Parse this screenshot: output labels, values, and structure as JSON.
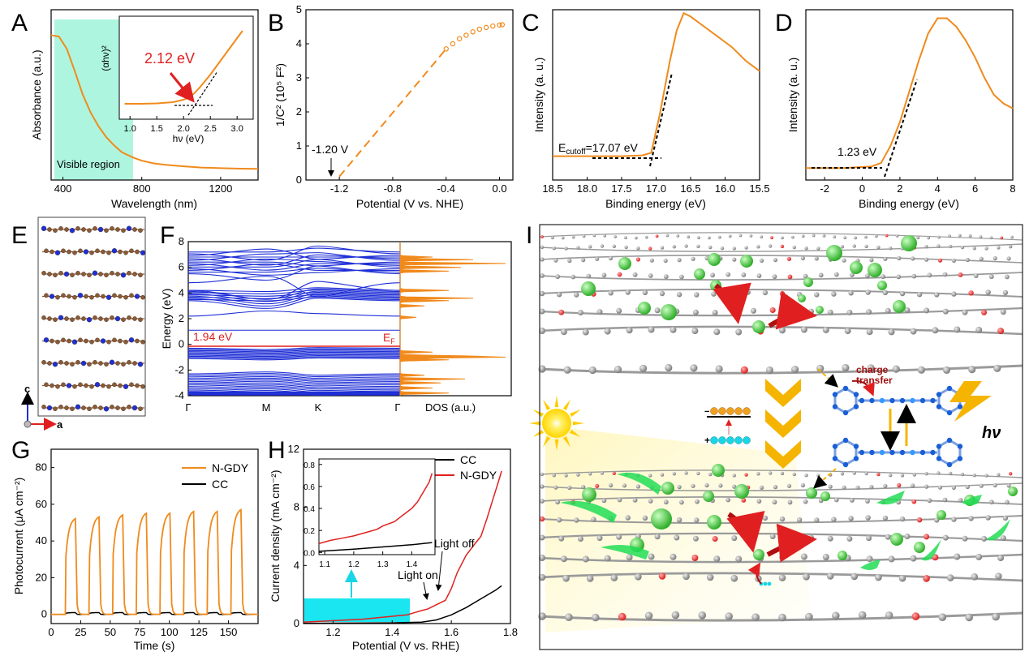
{
  "panels": [
    {
      "id": "A",
      "label": "A"
    },
    {
      "id": "B",
      "label": "B"
    },
    {
      "id": "C",
      "label": "C"
    },
    {
      "id": "D",
      "label": "D"
    },
    {
      "id": "E",
      "label": "E"
    },
    {
      "id": "F",
      "label": "F"
    },
    {
      "id": "G",
      "label": "G"
    },
    {
      "id": "H",
      "label": "H"
    },
    {
      "id": "I",
      "label": "I"
    }
  ],
  "chart_data": [
    {
      "panel": "A",
      "type": "line",
      "xlabel": "Wavelength (nm)",
      "ylabel": "Absorbance (a.u.)",
      "xlim": [
        340,
        1390
      ],
      "xticks": [
        "400",
        "800",
        "1200"
      ],
      "annotation": "Visible region",
      "shaded_range": [
        380,
        780
      ],
      "series": [
        {
          "color": "#f08a1c",
          "x": [
            340,
            380,
            420,
            460,
            500,
            540,
            580,
            620,
            660,
            700,
            760,
            800,
            860,
            920,
            1000,
            1100,
            1200,
            1300,
            1390
          ],
          "y": [
            0.98,
            0.97,
            0.88,
            0.72,
            0.55,
            0.42,
            0.32,
            0.24,
            0.18,
            0.13,
            0.09,
            0.07,
            0.05,
            0.04,
            0.03,
            0.02,
            0.015,
            0.012,
            0.01
          ]
        }
      ],
      "inset": {
        "type": "line",
        "xlabel": "hν (eV)",
        "ylabel": "(αhν)²",
        "xlim": [
          0.8,
          3.3
        ],
        "xticks": [
          "1.0",
          "1.5",
          "2.0",
          "2.5",
          "3.0"
        ],
        "annotation": "2.12 eV",
        "bandgap": 2.12,
        "x": [
          0.9,
          1.2,
          1.5,
          1.8,
          2.0,
          2.1,
          2.2,
          2.3,
          2.5,
          2.7,
          2.9,
          3.1
        ],
        "y": [
          0.02,
          0.02,
          0.025,
          0.04,
          0.07,
          0.1,
          0.15,
          0.22,
          0.38,
          0.56,
          0.74,
          0.92
        ]
      }
    },
    {
      "panel": "B",
      "type": "scatter",
      "xlabel": "Potential (V vs. NHE)",
      "ylabel": "1/C² (10⁵ F²)",
      "xlim": [
        -1.45,
        0.1
      ],
      "ylim": [
        0,
        5
      ],
      "xticks": [
        "-1.2",
        "-0.8",
        "-0.4",
        "0.0"
      ],
      "yticks": [
        "0",
        "1",
        "2",
        "3",
        "4",
        "5"
      ],
      "annotation": "-1.20 V",
      "intercept": -1.2,
      "series": [
        {
          "color": "#f08a1c",
          "x": [
            -0.4,
            -0.35,
            -0.3,
            -0.25,
            -0.2,
            -0.15,
            -0.1,
            -0.05,
            0.0,
            0.02
          ],
          "y": [
            3.85,
            4.0,
            4.15,
            4.25,
            4.35,
            4.43,
            4.48,
            4.52,
            4.55,
            4.56
          ]
        }
      ],
      "fit": {
        "x": [
          -1.2,
          -0.4
        ],
        "y": [
          0.1,
          3.85
        ]
      }
    },
    {
      "panel": "C",
      "type": "line",
      "xlabel": "Binding energy (eV)",
      "ylabel": "Intensity (a. u.)",
      "xlim": [
        18.5,
        15.5
      ],
      "xticks": [
        "18.5",
        "18.0",
        "17.5",
        "17.0",
        "16.5",
        "16.0",
        "15.5"
      ],
      "annotation_main": "E",
      "annotation_sub": "cutoff",
      "annotation_rest": "=17.07 eV",
      "cutoff": 17.07,
      "series": [
        {
          "color": "#f08a1c",
          "x": [
            18.5,
            18.0,
            17.5,
            17.2,
            17.07,
            16.95,
            16.8,
            16.7,
            16.6,
            16.5,
            16.3,
            16.1,
            15.9,
            15.7,
            15.5
          ],
          "y": [
            0.14,
            0.14,
            0.14,
            0.145,
            0.16,
            0.38,
            0.7,
            0.88,
            0.98,
            0.96,
            0.9,
            0.84,
            0.78,
            0.7,
            0.64
          ]
        }
      ]
    },
    {
      "panel": "D",
      "type": "line",
      "xlabel": "Binding energy (eV)",
      "ylabel": "Intensity (a. u.)",
      "xlim": [
        -3,
        8
      ],
      "xticks": [
        "-2",
        "0",
        "2",
        "4",
        "6",
        "8"
      ],
      "annotation": "1.23 eV",
      "onset": 1.23,
      "series": [
        {
          "color": "#f08a1c",
          "x": [
            -3,
            -1,
            0.5,
            1.0,
            1.5,
            2.0,
            2.5,
            3.0,
            3.5,
            4.0,
            4.5,
            5.0,
            5.5,
            6.0,
            6.5,
            7.0,
            7.5,
            8.0
          ],
          "y": [
            0.07,
            0.07,
            0.08,
            0.1,
            0.2,
            0.34,
            0.52,
            0.7,
            0.86,
            0.95,
            0.95,
            0.9,
            0.82,
            0.72,
            0.6,
            0.5,
            0.45,
            0.42
          ]
        }
      ]
    },
    {
      "panel": "F",
      "type": "line",
      "ylabel": "Energy (eV)",
      "ylim": [
        -4,
        8
      ],
      "yticks": [
        "-4",
        "-2",
        "0",
        "2",
        "4",
        "6",
        "8"
      ],
      "xticks": [
        "Γ",
        "M",
        "K",
        "Γ"
      ],
      "dos_label": "DOS  (a.u.)",
      "gap_label": "1.94 eV",
      "fermi_label": "E",
      "fermi_sub": "F",
      "band_gap": 1.94,
      "band_color": "#1f2fd6",
      "dos_color": "#f08a1c",
      "fermi_color": "#e02020"
    },
    {
      "panel": "G",
      "type": "line",
      "xlabel": "Time (s)",
      "ylabel": "Photocurrent (μA cm⁻²)",
      "xlim": [
        0,
        175
      ],
      "ylim": [
        -5,
        90
      ],
      "xticks": [
        "0",
        "25",
        "50",
        "75",
        "100",
        "125",
        "150"
      ],
      "yticks": [
        "0",
        "20",
        "40",
        "60",
        "80"
      ],
      "light_on_times": [
        12,
        32,
        52,
        72,
        92,
        112,
        132,
        152
      ],
      "series": [
        {
          "name": "N-GDY",
          "color": "#f08a1c",
          "on_values": [
            53,
            54,
            55,
            56,
            56,
            57,
            57,
            58
          ],
          "off_value": 0
        },
        {
          "name": "CC",
          "color": "#000000",
          "on_values": [
            1,
            1,
            1,
            1,
            1,
            1,
            1,
            1
          ],
          "off_value": 0
        }
      ]
    },
    {
      "panel": "H",
      "type": "line",
      "xlabel": "Potential (V vs. RHE)",
      "ylabel": "Current density (mA cm⁻²)",
      "xlim": [
        1.1,
        1.8
      ],
      "ylim": [
        0,
        12
      ],
      "xticks": [
        "1.2",
        "1.4",
        "1.6",
        "1.8"
      ],
      "yticks": [
        "0",
        "4",
        "8",
        "12"
      ],
      "annotation_on": "Light on",
      "annotation_off": "Light off",
      "series": [
        {
          "name": "CC",
          "color": "#000000",
          "x": [
            1.1,
            1.4,
            1.5,
            1.55,
            1.6,
            1.65,
            1.7,
            1.75,
            1.77
          ],
          "y": [
            0.02,
            0.05,
            0.1,
            0.25,
            0.6,
            1.1,
            1.7,
            2.3,
            2.6
          ]
        },
        {
          "name": "N-GDY",
          "color": "#e02020",
          "x": [
            1.1,
            1.3,
            1.45,
            1.5,
            1.52,
            1.55,
            1.58,
            1.6,
            1.62,
            1.65,
            1.68,
            1.7,
            1.72,
            1.74,
            1.76,
            1.77
          ],
          "y": [
            0.1,
            0.3,
            0.6,
            0.9,
            1.0,
            1.3,
            1.6,
            2.4,
            3.5,
            4.7,
            5.5,
            6.0,
            7.2,
            8.5,
            9.8,
            10.5
          ]
        }
      ],
      "inset": {
        "xlim": [
          1.08,
          1.48
        ],
        "ylim": [
          -0.02,
          0.85
        ],
        "xticks": [
          "1.1",
          "1.2",
          "1.3",
          "1.4"
        ],
        "yticks": [
          "0.0",
          "0.2",
          "0.4",
          "0.6",
          "0.8"
        ],
        "cc": {
          "x": [
            1.08,
            1.2,
            1.3,
            1.4,
            1.47
          ],
          "y": [
            0.01,
            0.03,
            0.05,
            0.07,
            0.09
          ]
        },
        "ngdy": {
          "x": [
            1.08,
            1.12,
            1.16,
            1.2,
            1.24,
            1.28,
            1.3,
            1.34,
            1.38,
            1.4,
            1.42,
            1.44,
            1.46,
            1.47
          ],
          "y": [
            0.08,
            0.11,
            0.13,
            0.15,
            0.18,
            0.21,
            0.24,
            0.28,
            0.36,
            0.4,
            0.46,
            0.55,
            0.64,
            0.72
          ]
        }
      }
    }
  ],
  "panel_E": {
    "axis_c": "c",
    "axis_a": "a"
  },
  "panel_I": {
    "charge_transfer_1": "charge",
    "charge_transfer_2": "transfer",
    "photon": "hν",
    "minus": "−",
    "plus": "+"
  }
}
